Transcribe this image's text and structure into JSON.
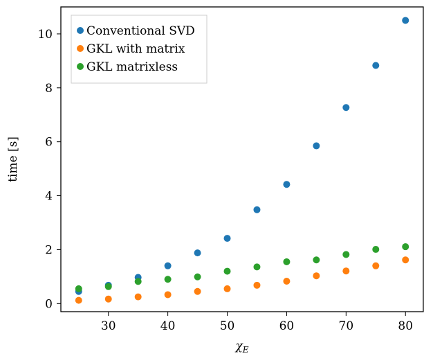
{
  "chart_data": {
    "type": "scatter",
    "xlabel": "χ",
    "xlabel_sub": "E",
    "ylabel": "time [s]",
    "xlim": [
      22,
      83
    ],
    "ylim": [
      -0.3,
      11.0
    ],
    "xticks": [
      30,
      40,
      50,
      60,
      70,
      80
    ],
    "yticks": [
      0,
      2,
      4,
      6,
      8,
      10
    ],
    "legend_position": "top-left",
    "grid": false,
    "x": [
      25,
      30,
      35,
      40,
      45,
      50,
      55,
      60,
      65,
      70,
      75,
      80
    ],
    "series": [
      {
        "name": "Conventional SVD",
        "color": "#1f77b4",
        "values": [
          0.45,
          0.68,
          0.97,
          1.4,
          1.88,
          2.42,
          3.48,
          4.42,
          5.85,
          7.27,
          8.83,
          10.5
        ]
      },
      {
        "name": "GKL with matrix",
        "color": "#ff7f0e",
        "values": [
          0.12,
          0.17,
          0.25,
          0.33,
          0.45,
          0.55,
          0.68,
          0.83,
          1.03,
          1.21,
          1.4,
          1.62
        ]
      },
      {
        "name": "GKL matrixless",
        "color": "#2ca02c",
        "values": [
          0.55,
          0.63,
          0.82,
          0.9,
          0.99,
          1.2,
          1.36,
          1.55,
          1.62,
          1.82,
          2.01,
          2.11
        ]
      }
    ]
  }
}
